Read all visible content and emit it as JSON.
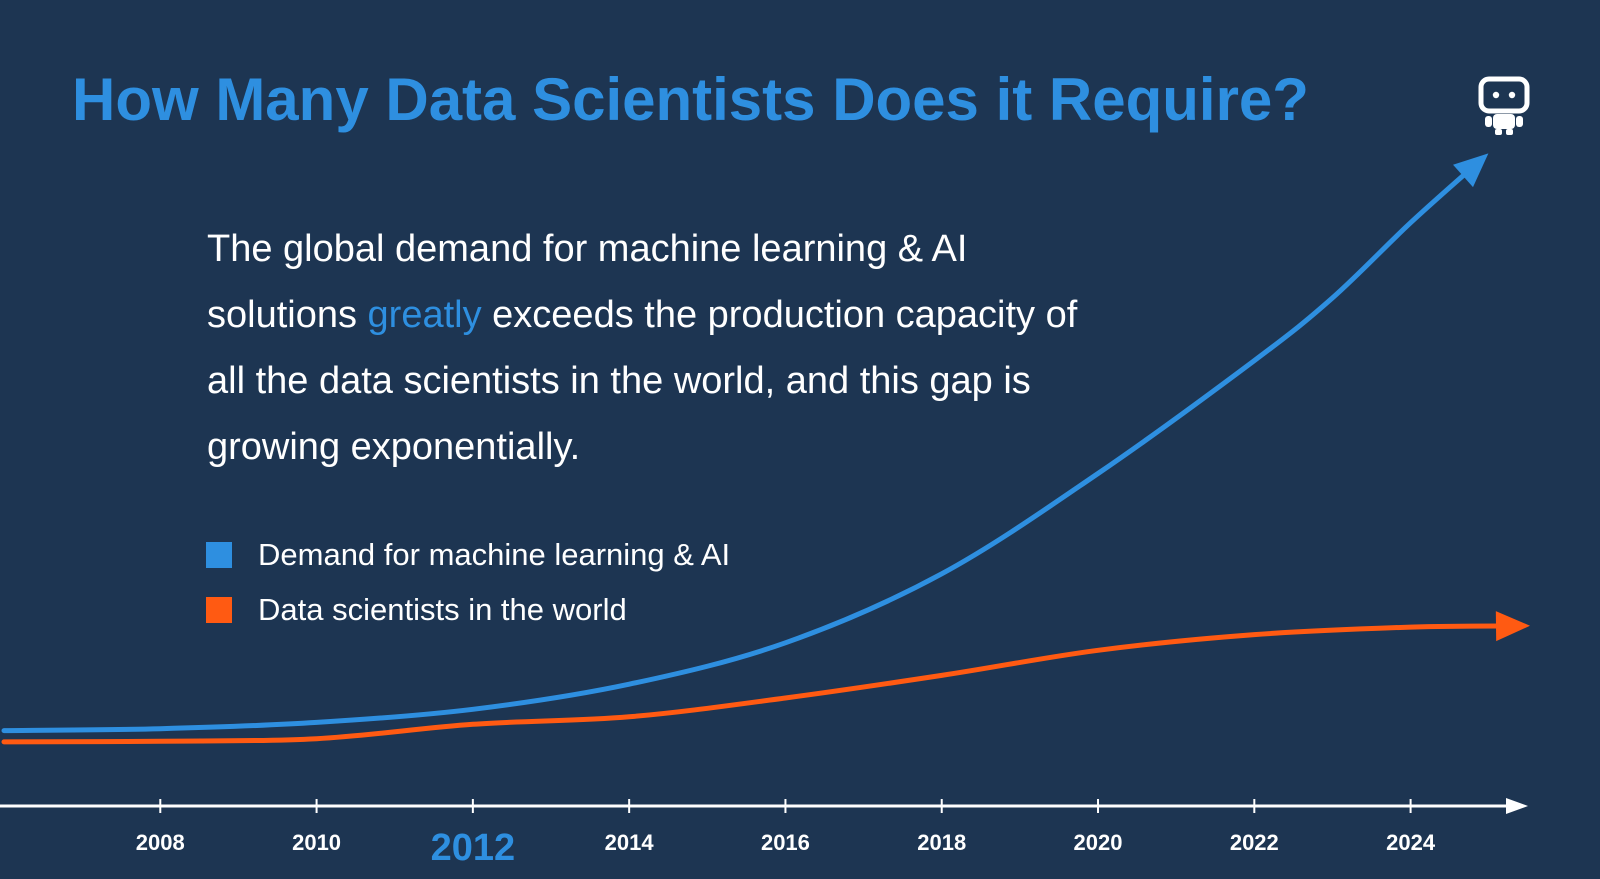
{
  "slide": {
    "title": "How Many Data Scientists Does it Require?",
    "description": {
      "before": "The global demand for machine learning & AI solutions ",
      "highlight": "greatly",
      "after": " exceeds the production capacity of all the data scientists in the world, and this gap is growing exponentially."
    },
    "logo_icon": "robot-icon"
  },
  "colors": {
    "background": "#1d3552",
    "accent": "#2e8fe0",
    "demand": "#2e8fe0",
    "supply": "#ff5a12",
    "axis": "#ffffff"
  },
  "chart_data": {
    "type": "line",
    "title": "",
    "xlabel": "",
    "ylabel": "",
    "x_ticks": [
      "2008",
      "2010",
      "2012",
      "2014",
      "2016",
      "2018",
      "2020",
      "2022",
      "2024"
    ],
    "highlighted_tick": "2012",
    "xlim": [
      2006,
      2025.4
    ],
    "ylim": [
      0,
      100
    ],
    "y_axis_shown": false,
    "grid": false,
    "legend_position": "upper-left",
    "series": [
      {
        "name": "Demand for machine learning & AI",
        "color": "#2e8fe0",
        "arrow_end": true,
        "x": [
          2006,
          2008,
          2010,
          2012,
          2014,
          2016,
          2018,
          2020,
          2022,
          2023,
          2024,
          2024.9
        ],
        "y": [
          9,
          9.3,
          10.3,
          12.4,
          16.4,
          23,
          34,
          50,
          68,
          78,
          90,
          100
        ]
      },
      {
        "name": "Data scientists in the world",
        "color": "#ff5a12",
        "arrow_end": true,
        "x": [
          2006,
          2008,
          2010,
          2012,
          2014,
          2016,
          2018,
          2020,
          2022,
          2024,
          2025.4
        ],
        "y": [
          7.2,
          7.3,
          7.7,
          10,
          11.2,
          14.2,
          17.8,
          21.8,
          24.3,
          25.5,
          25.7
        ]
      }
    ]
  }
}
